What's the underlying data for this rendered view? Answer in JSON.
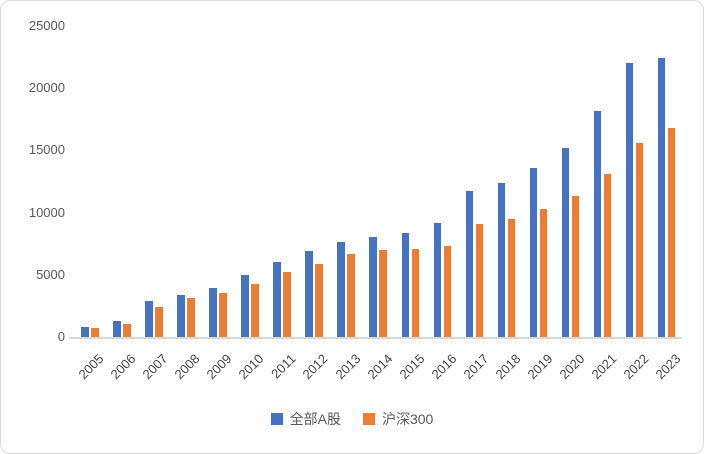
{
  "chart_data": {
    "type": "bar",
    "title": "",
    "xlabel": "",
    "ylabel": "",
    "categories": [
      "2005",
      "2006",
      "2007",
      "2008",
      "2009",
      "2010",
      "2011",
      "2012",
      "2013",
      "2014",
      "2015",
      "2016",
      "2017",
      "2018",
      "2019",
      "2020",
      "2021",
      "2022",
      "2023"
    ],
    "series": [
      {
        "name": "全部A股",
        "color": "#4472C4",
        "values": [
          800,
          1300,
          2900,
          3400,
          3900,
          5000,
          6000,
          6900,
          7600,
          8000,
          8400,
          9200,
          11700,
          12400,
          13600,
          15200,
          18200,
          22000,
          22400
        ]
      },
      {
        "name": "沪深300",
        "color": "#ED7D31",
        "values": [
          700,
          1050,
          2400,
          3100,
          3500,
          4300,
          5200,
          5900,
          6700,
          7000,
          7100,
          7300,
          9100,
          9500,
          10300,
          11300,
          13100,
          15600,
          16800
        ]
      }
    ],
    "ylim": [
      0,
      25000
    ],
    "y_ticks": [
      0,
      5000,
      10000,
      15000,
      20000,
      25000
    ],
    "grid": false,
    "legend_position": "bottom"
  },
  "style": {
    "axis_text_color": "#595959",
    "x_text_color": "#444444",
    "axis_line_color": "#D9D9D9"
  }
}
